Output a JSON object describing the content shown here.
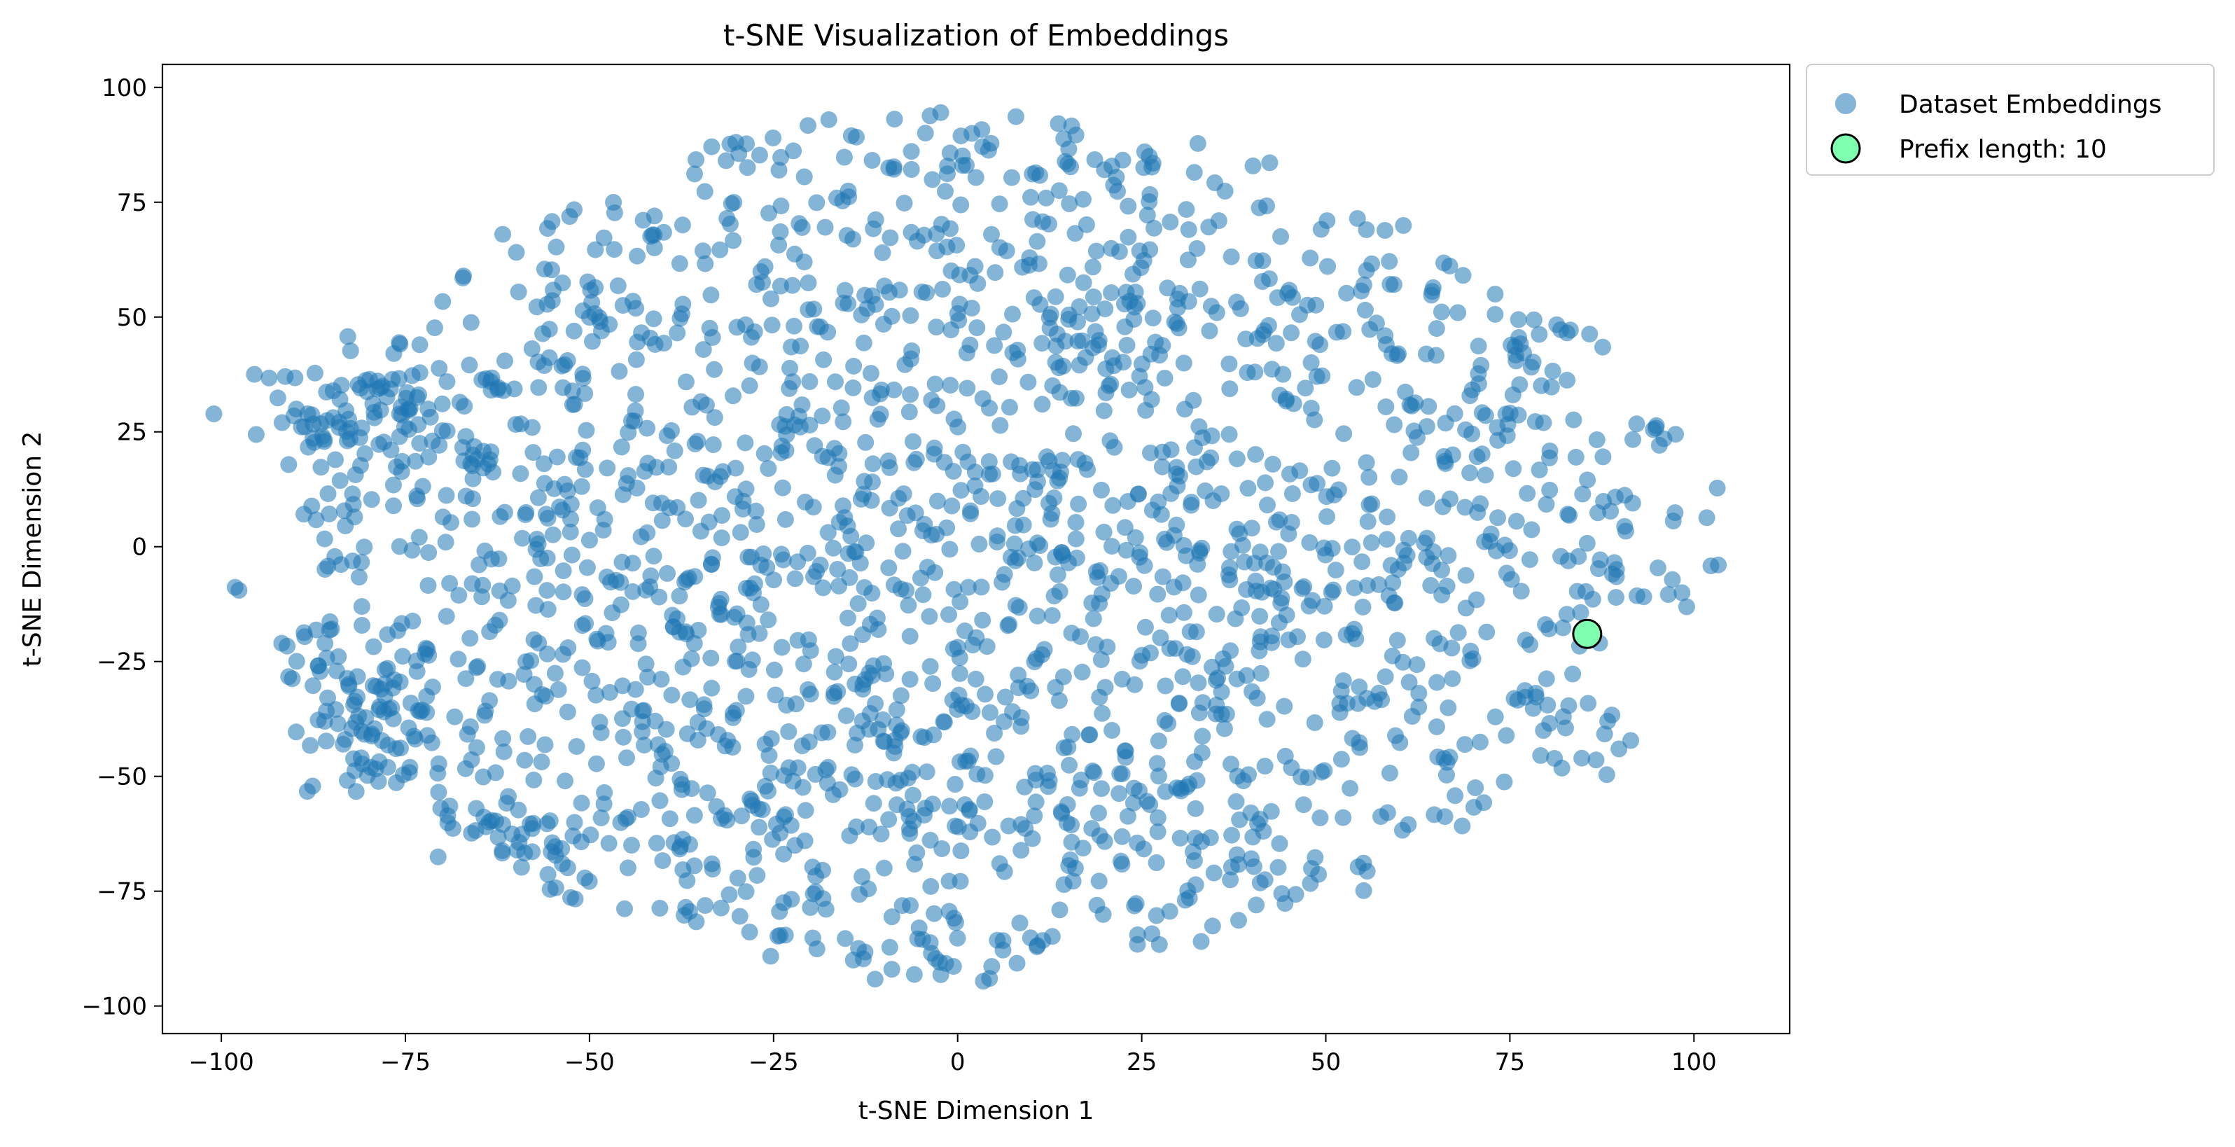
{
  "chart_data": {
    "type": "scatter",
    "title": "t-SNE Visualization of Embeddings",
    "xlabel": "t-SNE Dimension 1",
    "ylabel": "t-SNE Dimension 2",
    "xlim": [
      -108,
      113
    ],
    "ylim": [
      -106,
      105
    ],
    "xticks": [
      -100,
      -75,
      -50,
      -25,
      0,
      25,
      50,
      75,
      100
    ],
    "yticks": [
      -100,
      -75,
      -50,
      -25,
      0,
      25,
      50,
      75,
      100
    ],
    "xtick_labels": [
      "−100",
      "−75",
      "−50",
      "−25",
      "0",
      "25",
      "50",
      "75",
      "100"
    ],
    "ytick_labels": [
      "−100",
      "−75",
      "−50",
      "−25",
      "0",
      "25",
      "50",
      "75",
      "100"
    ],
    "grid": false,
    "legend_placement": "outside-top-right",
    "series": [
      {
        "name": "Dataset Embeddings",
        "color": "#1f77b4",
        "alpha": 0.55,
        "point_count": 2200,
        "sample_points": [
          [
            -99,
            -9
          ],
          [
            103,
            -4
          ],
          [
            85,
            -20
          ],
          [
            -80,
            -40
          ],
          [
            0,
            0
          ],
          [
            8,
            93
          ],
          [
            0,
            -95
          ],
          [
            -20,
            92
          ],
          [
            67,
            72
          ],
          [
            95,
            25
          ]
        ]
      },
      {
        "name": "Prefix length: 10",
        "color": "#7fffb0",
        "edge_color": "#000000",
        "points": [
          [
            85.5,
            -19
          ]
        ]
      }
    ]
  }
}
